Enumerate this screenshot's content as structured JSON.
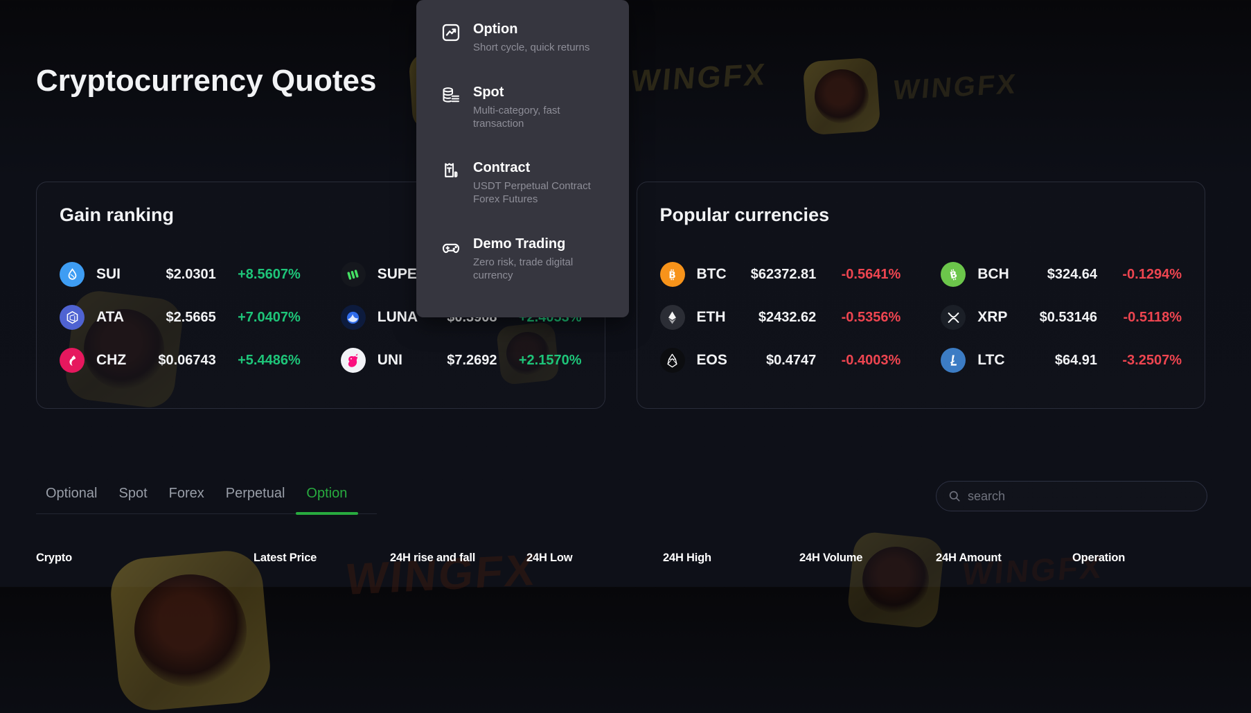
{
  "page": {
    "title": "Cryptocurrency Quotes"
  },
  "watermark": {
    "text": "WINGFX"
  },
  "colors": {
    "up": "#1ec579",
    "down": "#ee4550",
    "tab_active": "#28ab3f"
  },
  "menu": {
    "items": [
      {
        "icon": "option-chart-icon",
        "title": "Option",
        "desc": "Short cycle, quick returns"
      },
      {
        "icon": "spot-coins-icon",
        "title": "Spot",
        "desc": "Multi-category, fast transaction"
      },
      {
        "icon": "contract-usdt-icon",
        "title": "Contract",
        "desc": "USDT Perpetual Contract Forex Futures"
      },
      {
        "icon": "demo-gamepad-icon",
        "title": "Demo Trading",
        "desc": "Zero risk, trade digital currency"
      }
    ]
  },
  "gain_ranking": {
    "title": "Gain ranking",
    "left": [
      {
        "icon": "sui-icon",
        "icon_bg": "#3e9df3",
        "icon_fg": "#ffffff",
        "symbol": "SUI",
        "price": "$2.0301",
        "change": "+8.5607%",
        "direction": "up"
      },
      {
        "icon": "ata-icon",
        "icon_bg": "#4f63d2",
        "icon_fg": "#ffffff",
        "symbol": "ATA",
        "price": "$2.5665",
        "change": "+7.0407%",
        "direction": "up"
      },
      {
        "icon": "chz-icon",
        "icon_bg": "#e6185e",
        "icon_fg": "#ffffff",
        "symbol": "CHZ",
        "price": "$0.06743",
        "change": "+5.4486%",
        "direction": "up"
      }
    ],
    "right": [
      {
        "icon": "supe-icon",
        "icon_bg": "#15171d",
        "icon_fg": "#45e064",
        "symbol": "SUPE",
        "price": "",
        "change": "",
        "direction": "up"
      },
      {
        "icon": "luna-icon",
        "icon_bg": "#0d1b3d",
        "icon_fg": "#ffffff",
        "symbol": "LUNA",
        "price": "$0.3908",
        "change": "+2.4053%",
        "direction": "up"
      },
      {
        "icon": "uni-icon",
        "icon_bg": "#f2f3f7",
        "icon_fg": "#fb0f7f",
        "symbol": "UNI",
        "price": "$7.2692",
        "change": "+2.1570%",
        "direction": "up"
      }
    ]
  },
  "popular": {
    "title": "Popular currencies",
    "left": [
      {
        "icon": "btc-icon",
        "icon_bg": "#f7931a",
        "icon_fg": "#ffffff",
        "symbol": "BTC",
        "price": "$62372.81",
        "change": "-0.5641%",
        "direction": "down"
      },
      {
        "icon": "eth-icon",
        "icon_bg": "#2b2d35",
        "icon_fg": "#ffffff",
        "symbol": "ETH",
        "price": "$2432.62",
        "change": "-0.5356%",
        "direction": "down"
      },
      {
        "icon": "eos-icon",
        "icon_bg": "#0c0d10",
        "icon_fg": "#ffffff",
        "symbol": "EOS",
        "price": "$0.4747",
        "change": "-0.4003%",
        "direction": "down"
      }
    ],
    "right": [
      {
        "icon": "bch-icon",
        "icon_bg": "#6cc64b",
        "icon_fg": "#ffffff",
        "symbol": "BCH",
        "price": "$324.64",
        "change": "-0.1294%",
        "direction": "down"
      },
      {
        "icon": "xrp-icon",
        "icon_bg": "#1b1f27",
        "icon_fg": "#ffffff",
        "symbol": "XRP",
        "price": "$0.53146",
        "change": "-0.5118%",
        "direction": "down"
      },
      {
        "icon": "ltc-icon",
        "icon_bg": "#3c7cc4",
        "icon_fg": "#ffffff",
        "symbol": "LTC",
        "price": "$64.91",
        "change": "-3.2507%",
        "direction": "down"
      }
    ]
  },
  "tabs": [
    {
      "label": "Optional",
      "active": false
    },
    {
      "label": "Spot",
      "active": false
    },
    {
      "label": "Forex",
      "active": false
    },
    {
      "label": "Perpetual",
      "active": false
    },
    {
      "label": "Option",
      "active": true
    }
  ],
  "search": {
    "placeholder": "search"
  },
  "table": {
    "headers": [
      "Crypto",
      "Latest Price",
      "24H rise and fall",
      "24H Low",
      "24H High",
      "24H Volume",
      "24H Amount",
      "Operation"
    ]
  }
}
